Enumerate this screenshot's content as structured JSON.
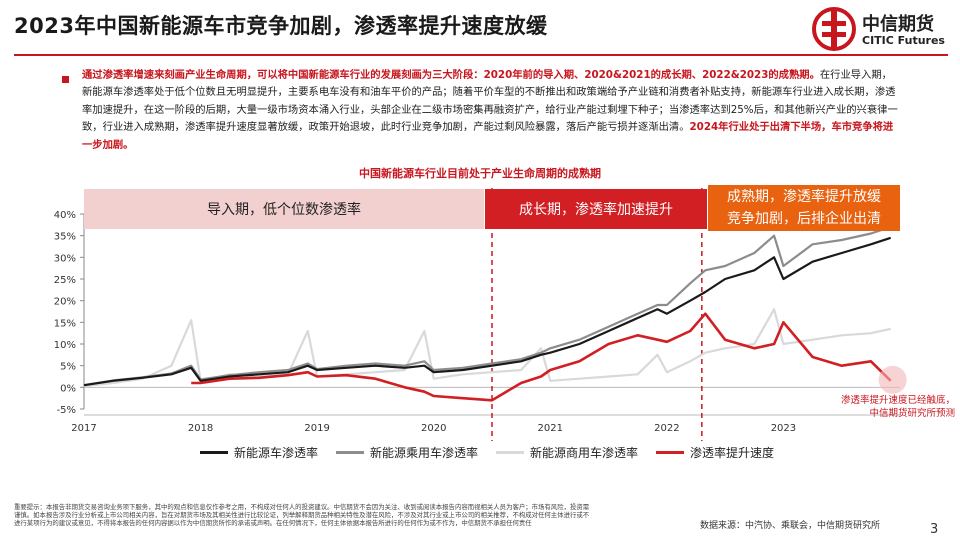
{
  "slide": {
    "title": "2023年中国新能源车市竞争加剧，渗透率提升速度放缓",
    "logo_cn": "中信期货",
    "logo_en": "CITIC Futures",
    "summary": {
      "bold_intro": "通过渗透率增速来刻画产业生命周期，可以将中国新能源车行业的发展刻画为三大阶段：2020年前的导入期、2020&2021的成长期、2022&2023的成熟期。",
      "body": "在行业导入期，新能源车渗透率处于低个位数且无明显提升，主要系电车没有和油车平价的产品；随着平价车型的不断推出和政策端给予产业链和消费者补贴支持，新能源车行业进入成长期，渗透率加速提升，在这一阶段的后期，大量一级市场资本涌入行业，头部企业在二级市场密集再融资扩产，给行业产能过剩埋下种子；当渗透率达到25%后，和其他新兴产业的兴衰律一致，行业进入成熟期，渗透率提升速度显著放缓，政策开始退坡，此时行业竞争加剧，产能过剩风险暴露，落后产能亏损并逐渐出清。",
      "bold_end": "2024年行业处于出清下半场，车市竞争将进一步加剧。"
    },
    "annotation_line1": "渗透率提升速度已经触底，",
    "annotation_line2": "中信期货研究所预测",
    "source": "数据来源：中汽协、乘联会，中信期货研究所",
    "page_number": "3",
    "disclaimer": "重要提示：本报告非期货交易咨询业务项下服务，其中的观点和信息仅作参考之用，不构成对任何人的投资建议。中信期货不会因为关注、收到或阅读本报告内容而视相关人员为客户；市场有风险，投资需谨慎。如本报告涉及行业分析或上市公司相关内容，旨在对期货市场及其相关性进行比较论证，列举解释期货品种相关特性及潜在风险，不涉及对其行业或上市公司的相关推荐，不构成对任何主体进行或不进行某项行为的建议或意见，不得将本报告的任何内容据以作为中信期货所作的承诺或声明。在任何情况下，任何主体依据本报告所进行的任何作为或不作为，中信期货不承担任何责任"
  },
  "chart_data": {
    "type": "line",
    "title": "中国新能源车行业目前处于产业生命周期的成熟期",
    "xlabel": "",
    "ylabel": "",
    "ylim": [
      -5,
      40
    ],
    "yticks": [
      "40%",
      "35%",
      "30%",
      "25%",
      "20%",
      "15%",
      "10%",
      "5%",
      "0%",
      "-5%"
    ],
    "xticks": [
      "2017",
      "2018",
      "2019",
      "2020",
      "2021",
      "2022",
      "2023"
    ],
    "phases": [
      {
        "label": "导入期，低个位数渗透率",
        "start": 2017.0,
        "end": 2020.5
      },
      {
        "label": "成长期，渗透率加速提升",
        "start": 2020.5,
        "end": 2022.3
      },
      {
        "label_line1": "成熟期，渗透率提升放缓",
        "label_line2": "竞争加剧，后排企业出清",
        "start": 2022.3,
        "end": 2024.0
      }
    ],
    "legend_position": "bottom",
    "colors": {
      "nev": "#1a1a1a",
      "passenger": "#8c8c8c",
      "commercial": "#d9d9d9",
      "speed": "#d11f24",
      "accent": "#c8161e"
    },
    "series": [
      {
        "name": "新能源车渗透率",
        "key": "nev",
        "x": [
          2017.0,
          2017.25,
          2017.5,
          2017.75,
          2017.92,
          2018.0,
          2018.25,
          2018.5,
          2018.75,
          2018.92,
          2019.0,
          2019.25,
          2019.5,
          2019.75,
          2019.92,
          2020.0,
          2020.25,
          2020.5,
          2020.75,
          2020.92,
          2021.0,
          2021.25,
          2021.5,
          2021.75,
          2021.92,
          2022.0,
          2022.2,
          2022.33,
          2022.5,
          2022.75,
          2022.92,
          2023.0,
          2023.25,
          2023.5,
          2023.75,
          2023.92
        ],
        "y": [
          0.5,
          1.5,
          2.2,
          3.0,
          4.5,
          1.5,
          2.5,
          3.0,
          3.5,
          5.0,
          4.0,
          4.5,
          5.0,
          4.5,
          5.0,
          3.5,
          4.0,
          5.0,
          6.0,
          7.5,
          8.0,
          10.0,
          13.0,
          16.0,
          18.0,
          17.0,
          20.0,
          22.0,
          25.0,
          27.0,
          30.0,
          25.0,
          29.0,
          31.0,
          33.0,
          34.5
        ]
      },
      {
        "name": "新能源乘用车渗透率",
        "key": "passenger",
        "x": [
          2017.0,
          2017.25,
          2017.5,
          2017.75,
          2017.92,
          2018.0,
          2018.25,
          2018.5,
          2018.75,
          2018.92,
          2019.0,
          2019.25,
          2019.5,
          2019.75,
          2019.92,
          2020.0,
          2020.25,
          2020.5,
          2020.75,
          2020.92,
          2021.0,
          2021.25,
          2021.5,
          2021.75,
          2021.92,
          2022.0,
          2022.2,
          2022.33,
          2022.5,
          2022.75,
          2022.92,
          2023.0,
          2023.25,
          2023.5,
          2023.75,
          2023.92
        ],
        "y": [
          0.5,
          1.6,
          2.3,
          3.2,
          5.0,
          1.8,
          2.8,
          3.5,
          4.0,
          5.5,
          4.2,
          5.0,
          5.5,
          5.0,
          6.0,
          4.0,
          4.5,
          5.5,
          6.5,
          8.0,
          9.0,
          11.0,
          14.0,
          17.0,
          19.0,
          19.0,
          24.0,
          27.0,
          28.0,
          31.0,
          35.0,
          28.0,
          33.0,
          34.0,
          35.5,
          37.0
        ]
      },
      {
        "name": "新能源商用车渗透率",
        "key": "commercial",
        "x": [
          2017.0,
          2017.25,
          2017.5,
          2017.75,
          2017.92,
          2018.0,
          2018.25,
          2018.5,
          2018.75,
          2018.92,
          2019.0,
          2019.25,
          2019.5,
          2019.75,
          2019.92,
          2020.0,
          2020.25,
          2020.5,
          2020.75,
          2020.92,
          2021.0,
          2021.25,
          2021.5,
          2021.75,
          2021.92,
          2022.0,
          2022.2,
          2022.33,
          2022.5,
          2022.75,
          2022.92,
          2023.0,
          2023.25,
          2023.5,
          2023.75,
          2023.92
        ],
        "y": [
          0.3,
          1.0,
          2.0,
          5.0,
          15.5,
          1.5,
          3.0,
          2.5,
          3.0,
          13.0,
          2.5,
          3.0,
          3.5,
          4.0,
          13.0,
          2.0,
          3.0,
          3.5,
          4.0,
          9.0,
          1.5,
          2.0,
          2.5,
          3.0,
          7.5,
          3.5,
          6.0,
          8.0,
          9.0,
          10.0,
          18.0,
          10.0,
          11.0,
          12.0,
          12.5,
          13.5
        ]
      },
      {
        "name": "渗透率提升速度",
        "key": "speed",
        "x": [
          2017.92,
          2018.0,
          2018.25,
          2018.5,
          2018.75,
          2018.92,
          2019.0,
          2019.25,
          2019.5,
          2019.75,
          2019.92,
          2020.0,
          2020.25,
          2020.5,
          2020.75,
          2020.92,
          2021.0,
          2021.25,
          2021.5,
          2021.75,
          2021.92,
          2022.0,
          2022.2,
          2022.33,
          2022.5,
          2022.75,
          2022.92,
          2023.0,
          2023.25,
          2023.5,
          2023.75,
          2023.92
        ],
        "y": [
          1.0,
          1.0,
          2.0,
          2.2,
          2.8,
          3.5,
          2.5,
          2.8,
          2.0,
          0.0,
          -1.0,
          -2.0,
          -2.5,
          -3.0,
          1.0,
          2.5,
          4.0,
          6.0,
          10.0,
          12.0,
          11.0,
          10.5,
          13.0,
          17.0,
          11.0,
          9.0,
          10.0,
          15.0,
          7.0,
          5.0,
          6.0,
          1.5
        ]
      }
    ]
  }
}
